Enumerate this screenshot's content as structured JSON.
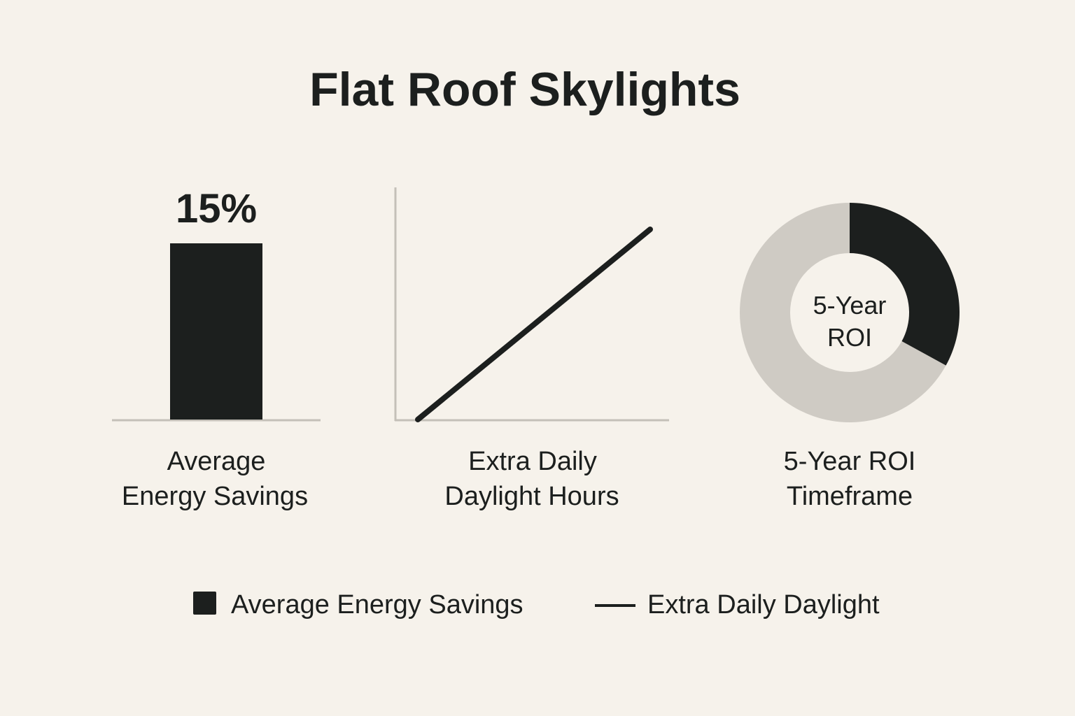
{
  "title": "Flat Roof Skylights",
  "colors": {
    "background": "#f6f2eb",
    "dark": "#1c1f1e",
    "light": "#cfcbc4",
    "axis": "#c4c0b8"
  },
  "chart_data": [
    {
      "type": "bar",
      "categories": [
        "Average Energy Savings"
      ],
      "values": [
        15
      ],
      "data_label": "15%",
      "caption": [
        "Average",
        "Energy Savings"
      ],
      "ylim": [
        0,
        15
      ]
    },
    {
      "type": "line",
      "series": [
        {
          "values": [
            0,
            1
          ]
        }
      ],
      "caption": [
        "Extra Daily",
        "Daylight Hours"
      ],
      "axes": "unlabeled"
    },
    {
      "type": "pie",
      "donut": true,
      "values": [
        33,
        67
      ],
      "center_label": [
        "5-Year",
        "ROI"
      ],
      "caption": [
        "5-Year ROI",
        "Timeframe"
      ]
    }
  ],
  "legend": {
    "placement": "bottom",
    "items": [
      {
        "label": "Average Energy Savings",
        "marker": "square"
      },
      {
        "label": "Extra Daily Daylight",
        "marker": "line"
      }
    ]
  }
}
